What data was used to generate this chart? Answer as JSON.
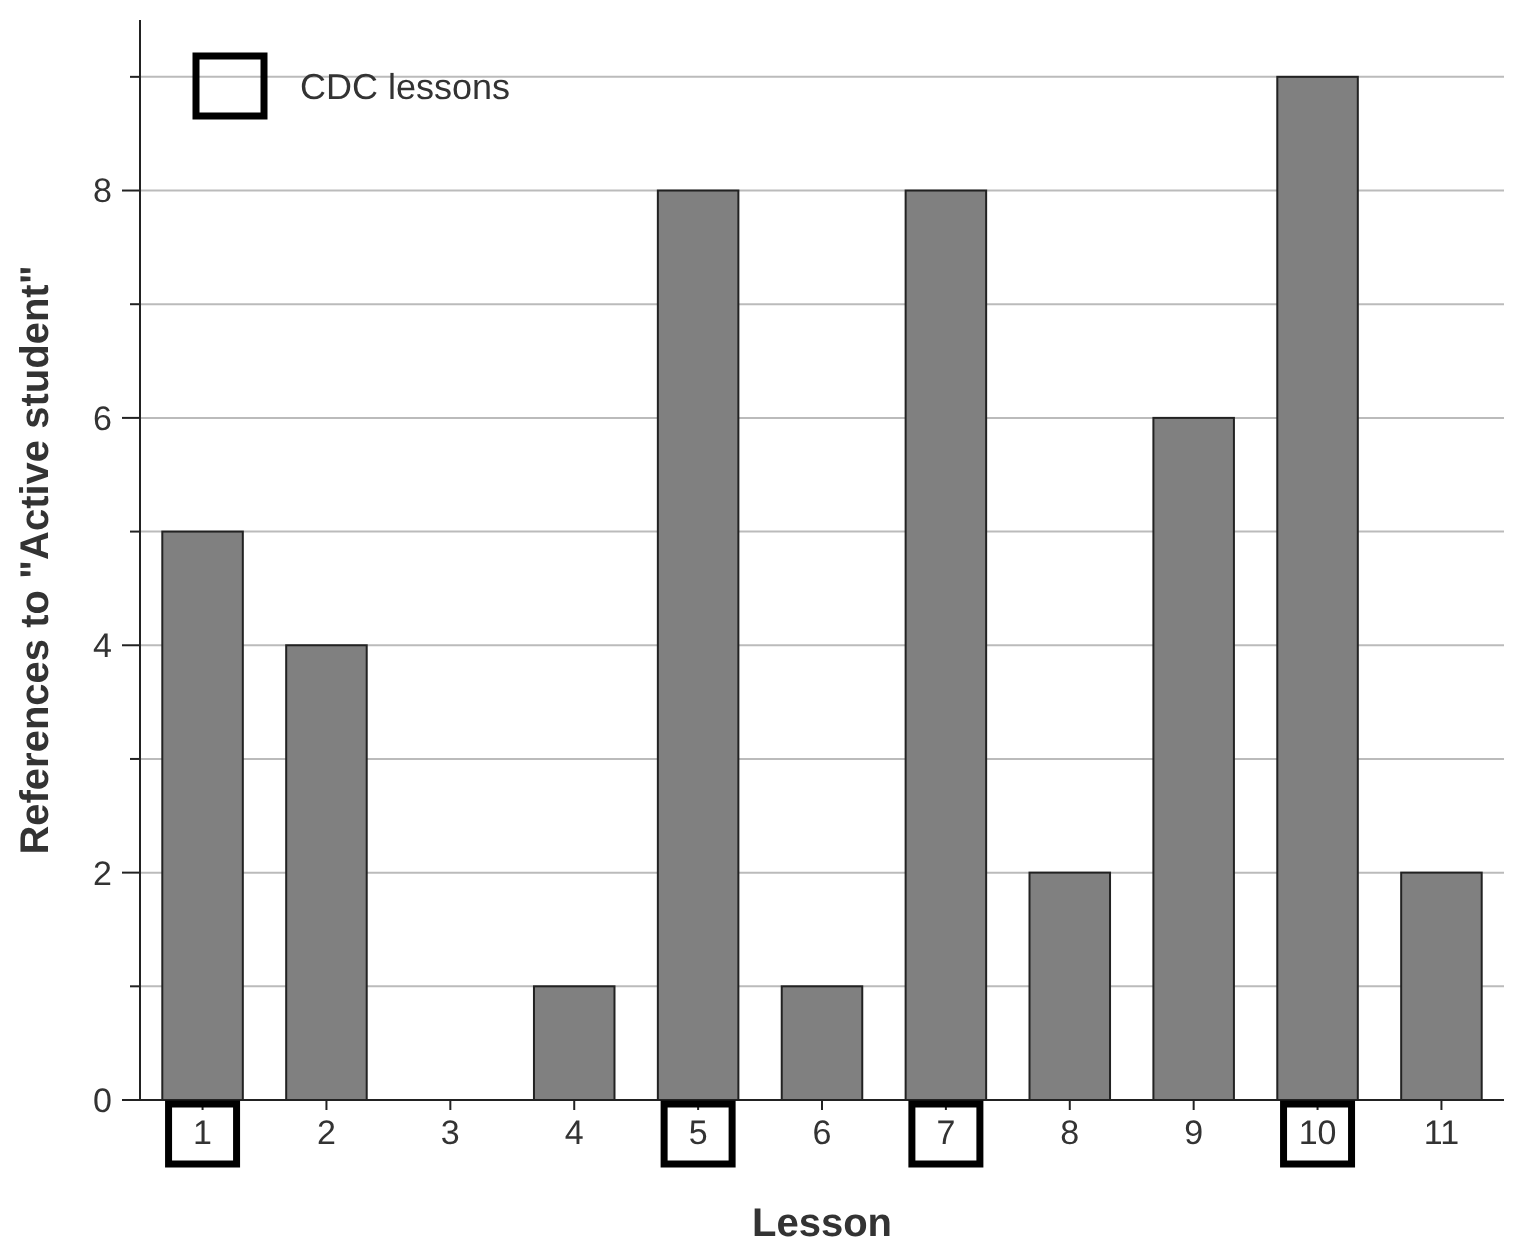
{
  "chart_data": {
    "type": "bar",
    "xlabel": "Lesson",
    "ylabel": "References to \"Active student\"",
    "categories": [
      "1",
      "2",
      "3",
      "4",
      "5",
      "6",
      "7",
      "8",
      "9",
      "10",
      "11"
    ],
    "values": [
      5,
      4,
      0,
      1,
      8,
      1,
      8,
      2,
      6,
      9,
      2
    ],
    "color": "#808080",
    "annotations": [
      "CDC lessons"
    ],
    "ylim": [
      0,
      9.5
    ],
    "yticks": [
      0,
      {
        "value": 1,
        "label": null
      },
      2,
      {
        "value": 3,
        "label": null
      },
      4,
      {
        "value": 5,
        "label": null
      },
      6,
      {
        "value": 7,
        "label": null
      },
      8,
      {
        "value": 9,
        "label": null
      }
    ],
    "grid": "y"
  }
}
